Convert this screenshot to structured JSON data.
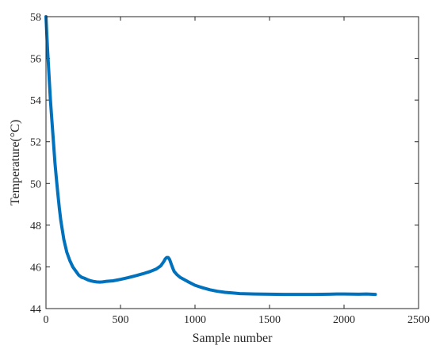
{
  "chart_data": {
    "type": "line",
    "title": "",
    "xlabel": "Sample number",
    "ylabel": "Temperature(°C)",
    "xlim": [
      0,
      2500
    ],
    "ylim": [
      44,
      58
    ],
    "xticks": [
      0,
      500,
      1000,
      1500,
      2000,
      2500
    ],
    "yticks": [
      44,
      46,
      48,
      50,
      52,
      54,
      56,
      58
    ],
    "grid": false,
    "legend": "none",
    "series_color": "#0072BD",
    "series": [
      {
        "x": [
          0,
          10,
          20,
          30,
          40,
          50,
          60,
          70,
          80,
          90,
          100,
          120,
          140,
          160,
          180,
          200,
          220,
          240,
          260,
          280,
          300,
          320,
          340,
          360,
          380,
          400,
          450,
          500,
          550,
          600,
          650,
          700,
          740,
          770,
          790,
          800,
          810,
          820,
          830,
          840,
          850,
          860,
          880,
          900,
          950,
          1000,
          1050,
          1100,
          1150,
          1200,
          1250,
          1300,
          1400,
          1500,
          1600,
          1700,
          1800,
          1900,
          1950,
          2000,
          2100,
          2150,
          2210
        ],
        "y": [
          58.0,
          56.5,
          55.2,
          54.0,
          53.0,
          52.0,
          51.0,
          50.2,
          49.5,
          48.8,
          48.2,
          47.3,
          46.7,
          46.3,
          46.0,
          45.8,
          45.6,
          45.5,
          45.45,
          45.38,
          45.33,
          45.3,
          45.28,
          45.27,
          45.28,
          45.3,
          45.33,
          45.4,
          45.48,
          45.57,
          45.67,
          45.78,
          45.9,
          46.05,
          46.25,
          46.38,
          46.45,
          46.45,
          46.35,
          46.15,
          45.95,
          45.78,
          45.62,
          45.5,
          45.3,
          45.12,
          45.0,
          44.9,
          44.83,
          44.78,
          44.75,
          44.72,
          44.7,
          44.69,
          44.68,
          44.68,
          44.68,
          44.69,
          44.7,
          44.7,
          44.69,
          44.7,
          44.68
        ]
      }
    ]
  }
}
